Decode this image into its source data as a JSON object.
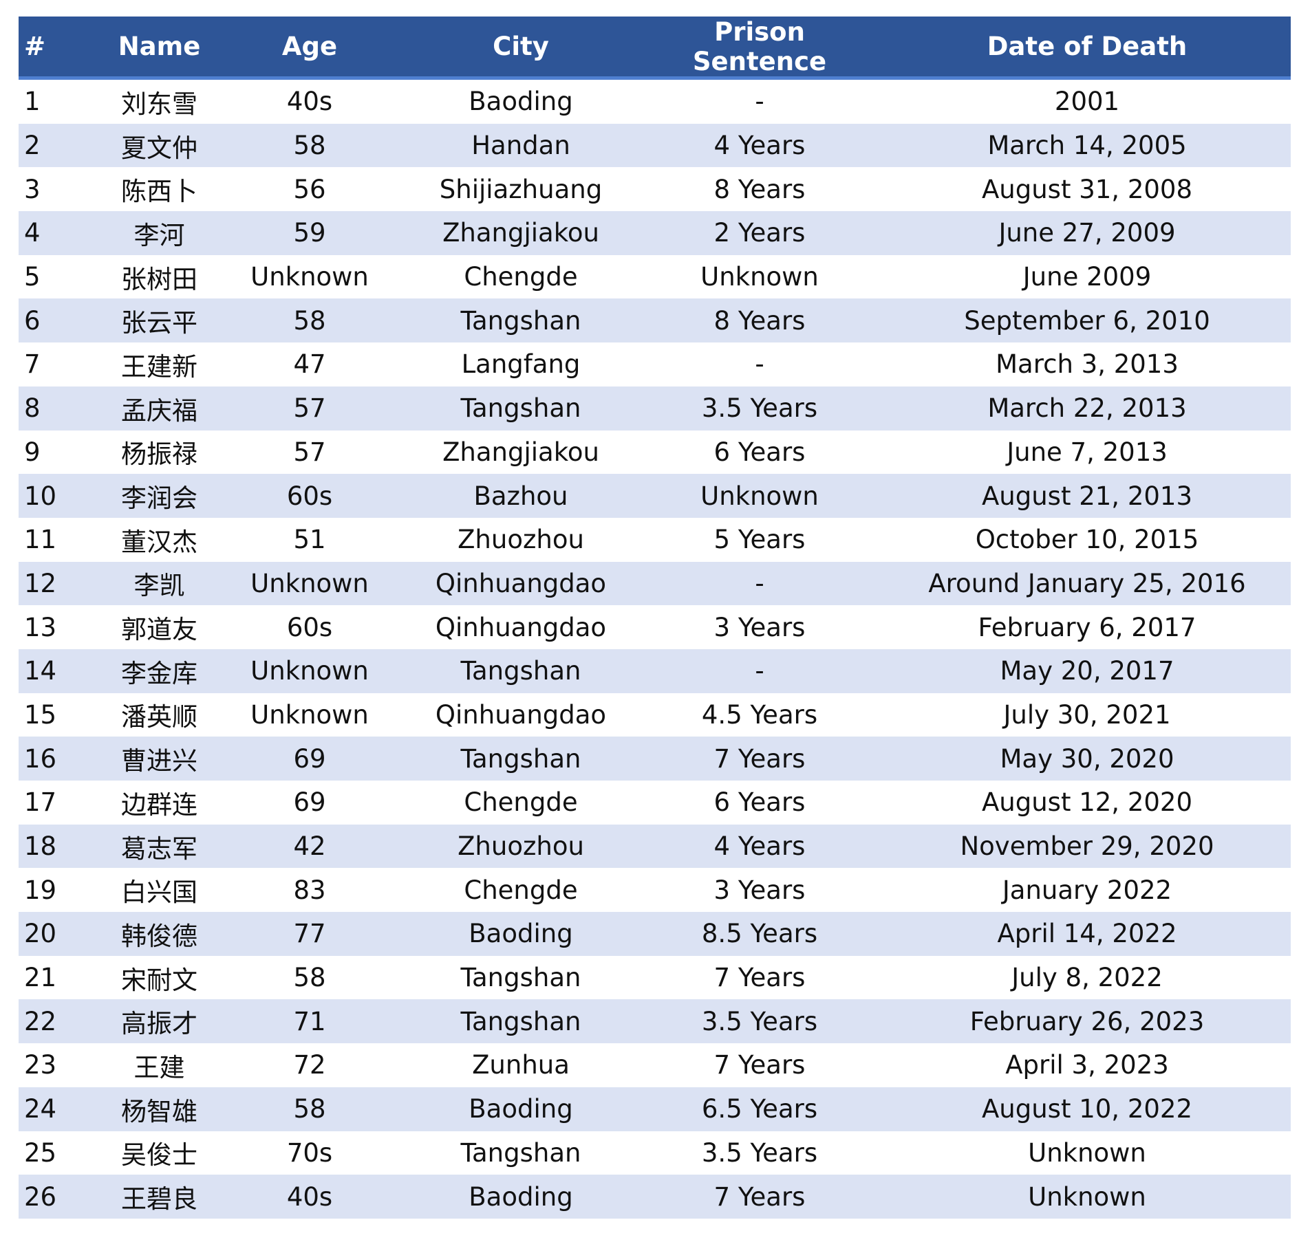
{
  "table": {
    "columns": [
      "#",
      "Name",
      "Age",
      "City",
      "Prison Sentence",
      "Date of Death"
    ],
    "rows": [
      [
        "1",
        "刘东雪",
        "40s",
        "Baoding",
        "-",
        "2001"
      ],
      [
        "2",
        "夏文仲",
        "58",
        "Handan",
        "4 Years",
        "March 14, 2005"
      ],
      [
        "3",
        "陈西卜",
        "56",
        "Shijiazhuang",
        "8 Years",
        "August 31, 2008"
      ],
      [
        "4",
        "李河",
        "59",
        "Zhangjiakou",
        "2 Years",
        "June 27, 2009"
      ],
      [
        "5",
        "张树田",
        "Unknown",
        "Chengde",
        "Unknown",
        "June 2009"
      ],
      [
        "6",
        "张云平",
        "58",
        "Tangshan",
        "8 Years",
        "September 6, 2010"
      ],
      [
        "7",
        "王建新",
        "47",
        "Langfang",
        "-",
        "March 3, 2013"
      ],
      [
        "8",
        "孟庆福",
        "57",
        "Tangshan",
        "3.5 Years",
        "March 22, 2013"
      ],
      [
        "9",
        "杨振禄",
        "57",
        "Zhangjiakou",
        "6 Years",
        "June 7, 2013"
      ],
      [
        "10",
        "李润会",
        "60s",
        "Bazhou",
        "Unknown",
        "August 21, 2013"
      ],
      [
        "11",
        "董汉杰",
        "51",
        "Zhuozhou",
        "5 Years",
        "October 10, 2015"
      ],
      [
        "12",
        "李凯",
        "Unknown",
        "Qinhuangdao",
        "-",
        "Around January 25, 2016"
      ],
      [
        "13",
        "郭道友",
        "60s",
        "Qinhuangdao",
        "3 Years",
        "February 6, 2017"
      ],
      [
        "14",
        "李金库",
        "Unknown",
        "Tangshan",
        "-",
        "May 20, 2017"
      ],
      [
        "15",
        "潘英顺",
        "Unknown",
        "Qinhuangdao",
        "4.5 Years",
        "July 30, 2021"
      ],
      [
        "16",
        "曹进兴",
        "69",
        "Tangshan",
        "7 Years",
        "May 30, 2020"
      ],
      [
        "17",
        "边群连",
        "69",
        "Chengde",
        "6 Years",
        "August 12, 2020"
      ],
      [
        "18",
        "葛志军",
        "42",
        "Zhuozhou",
        "4 Years",
        "November 29, 2020"
      ],
      [
        "19",
        "白兴国",
        "83",
        "Chengde",
        "3 Years",
        "January 2022"
      ],
      [
        "20",
        "韩俊德",
        "77",
        "Baoding",
        "8.5 Years",
        "April 14, 2022"
      ],
      [
        "21",
        "宋耐文",
        "58",
        "Tangshan",
        "7 Years",
        "July 8, 2022"
      ],
      [
        "22",
        "高振才",
        "71",
        "Tangshan",
        "3.5 Years",
        "February 26, 2023"
      ],
      [
        "23",
        "王建",
        "72",
        "Zunhua",
        "7 Years",
        "April 3, 2023"
      ],
      [
        "24",
        "杨智雄",
        "58",
        "Baoding",
        "6.5 Years",
        "August 10, 2022"
      ],
      [
        "25",
        "吴俊士",
        "70s",
        "Tangshan",
        "3.5 Years",
        "Unknown"
      ],
      [
        "26",
        "王碧良",
        "40s",
        "Baoding",
        "7 Years",
        "Unknown"
      ]
    ]
  }
}
